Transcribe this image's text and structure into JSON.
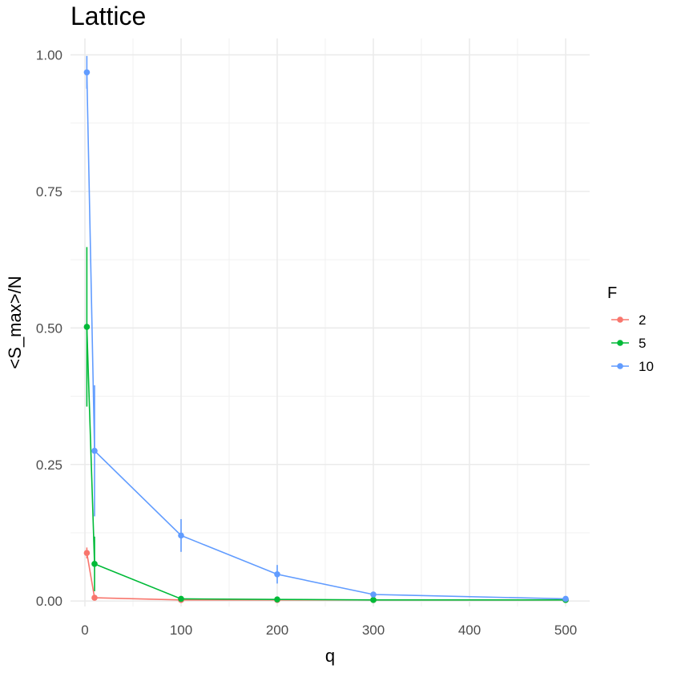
{
  "chart_data": {
    "type": "line",
    "title": "Lattice",
    "xlabel": "q",
    "ylabel": "<S_max>/N",
    "xlim": [
      -15,
      525
    ],
    "ylim": [
      -0.01,
      1.03
    ],
    "x_ticks": [
      0,
      100,
      200,
      300,
      400,
      500
    ],
    "y_ticks": [
      0.0,
      0.25,
      0.5,
      0.75,
      1.0
    ],
    "y_tick_labels": [
      "0.00",
      "0.25",
      "0.50",
      "0.75",
      "1.00"
    ],
    "grid": true,
    "legend": {
      "title": "F",
      "position": "right"
    },
    "colors": {
      "2": "#F8766D",
      "5": "#00BA38",
      "10": "#619CFF"
    },
    "series": [
      {
        "name": "2",
        "x": [
          2,
          10,
          100,
          200,
          300,
          500
        ],
        "y": [
          0.088,
          0.006,
          0.002,
          0.002,
          0.002,
          0.002
        ],
        "err": [
          0.01,
          0.001,
          0.0005,
          0.0005,
          0.0005,
          0.0005
        ]
      },
      {
        "name": "5",
        "x": [
          2,
          10,
          100,
          200,
          300,
          500
        ],
        "y": [
          0.502,
          0.068,
          0.004,
          0.003,
          0.002,
          0.002
        ],
        "err": [
          0.146,
          0.05,
          0.001,
          0.001,
          0.0005,
          0.0005
        ]
      },
      {
        "name": "10",
        "x": [
          2,
          10,
          100,
          200,
          300,
          500
        ],
        "y": [
          0.968,
          0.275,
          0.12,
          0.049,
          0.012,
          0.004
        ],
        "err": [
          0.03,
          0.12,
          0.03,
          0.017,
          0.003,
          0.001
        ]
      }
    ]
  }
}
